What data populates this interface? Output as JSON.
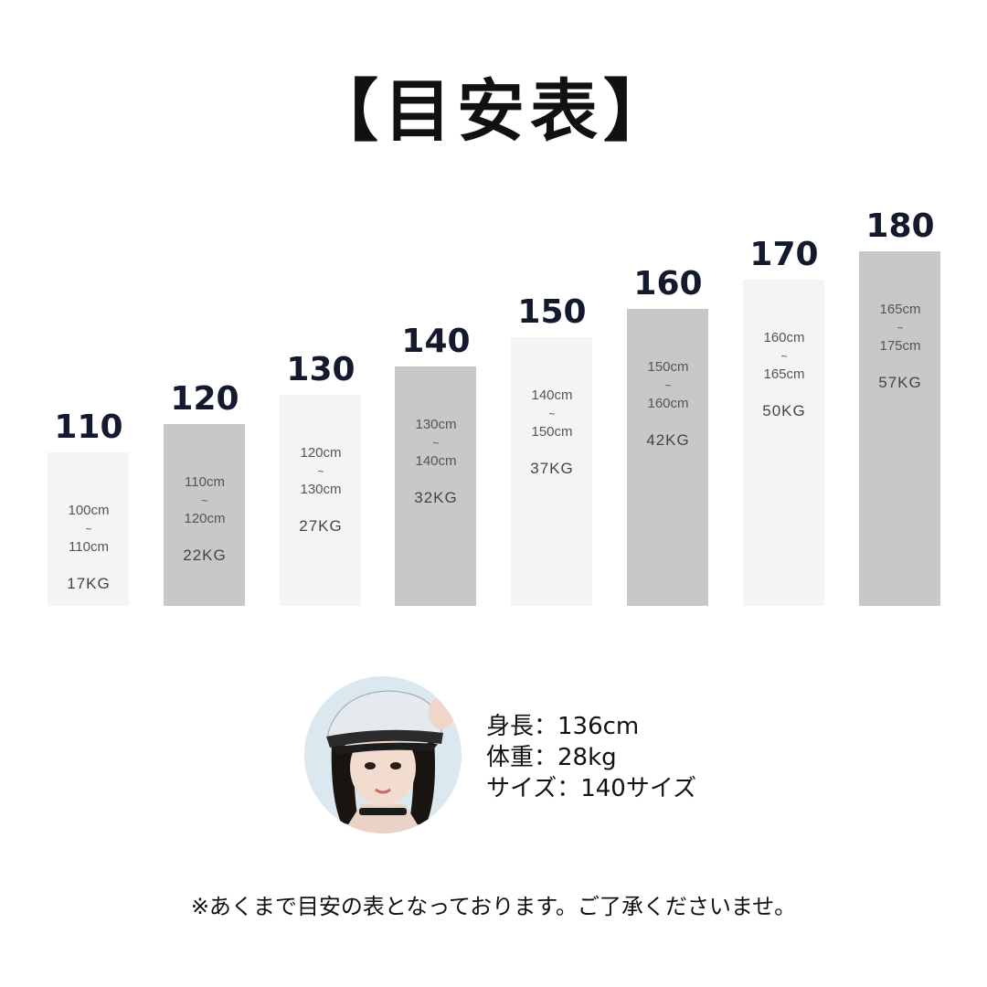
{
  "chart_data": {
    "type": "bar",
    "title": "【目安表】",
    "categories": [
      "110",
      "120",
      "130",
      "140",
      "150",
      "160",
      "170",
      "180"
    ],
    "values": [
      110,
      120,
      130,
      140,
      150,
      160,
      170,
      180
    ],
    "height_ranges": [
      [
        "100cm",
        "110cm"
      ],
      [
        "110cm",
        "120cm"
      ],
      [
        "120cm",
        "130cm"
      ],
      [
        "130cm",
        "140cm"
      ],
      [
        "140cm",
        "150cm"
      ],
      [
        "150cm",
        "160cm"
      ],
      [
        "160cm",
        "165cm"
      ],
      [
        "165cm",
        "175cm"
      ]
    ],
    "range_separator": "~",
    "weights": [
      "17KG",
      "22KG",
      "27KG",
      "32KG",
      "37KG",
      "42KG",
      "50KG",
      "57KG"
    ],
    "bar_colors": [
      "#f3f4f6",
      "#c8c8c8",
      "#f3f4f6",
      "#c8c8c8",
      "#f3f4f6",
      "#c8c8c8",
      "#f3f4f6",
      "#c8c8c8"
    ],
    "xlabel": "",
    "ylabel": "",
    "grid": false,
    "legend": "none"
  },
  "model": {
    "height": "身長：136cm",
    "weight": "体重：28kg",
    "size": "サイズ：140サイズ"
  },
  "note": "※あくまで目安の表となっております。ご了承くださいませ。"
}
